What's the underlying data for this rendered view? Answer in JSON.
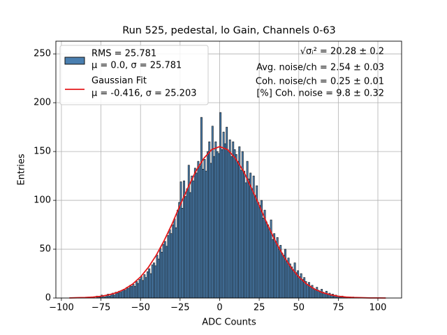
{
  "chart_data": {
    "type": "histogram",
    "title": "Run 525, pedestal, lo Gain, Channels 0-63",
    "x_label": "ADC Counts",
    "y_label": "Entries",
    "bins": [
      -80,
      -79,
      -78,
      -77,
      -76,
      -75,
      -74,
      -73,
      -72,
      -71,
      -70,
      -69,
      -68,
      -67,
      -66,
      -65,
      -64,
      -63,
      -62,
      -61,
      -60,
      -59,
      -58,
      -57,
      -56,
      -55,
      -54,
      -53,
      -52,
      -51,
      -50,
      -49,
      -48,
      -47,
      -46,
      -45,
      -44,
      -43,
      -42,
      -41,
      -40,
      -39,
      -38,
      -37,
      -36,
      -35,
      -34,
      -33,
      -32,
      -31,
      -30,
      -29,
      -28,
      -27,
      -26,
      -25,
      -24,
      -23,
      -22,
      -21,
      -20,
      -19,
      -18,
      -17,
      -16,
      -15,
      -14,
      -13,
      -12,
      -11,
      -10,
      -9,
      -8,
      -7,
      -6,
      -5,
      -4,
      -3,
      -2,
      -1,
      0,
      1,
      2,
      3,
      4,
      5,
      6,
      7,
      8,
      9,
      10,
      11,
      12,
      13,
      14,
      15,
      16,
      17,
      18,
      19,
      20,
      21,
      22,
      23,
      24,
      25,
      26,
      27,
      28,
      29,
      30,
      31,
      32,
      33,
      34,
      35,
      36,
      37,
      38,
      39,
      40,
      41,
      42,
      43,
      44,
      45,
      46,
      47,
      48,
      49,
      50,
      51,
      52,
      53,
      54,
      55,
      56,
      57,
      58,
      59,
      60,
      61,
      62,
      63,
      64,
      65,
      66,
      67,
      68,
      69,
      70,
      71,
      72,
      73,
      74,
      75,
      76,
      77,
      78,
      79,
      80,
      81,
      82,
      83,
      84,
      85
    ],
    "series": [
      {
        "name": "RMS = 25.781",
        "subtitle": "μ = 0.0, σ = 25.781",
        "color": "#4a7fb0",
        "edgecolor": "#111111",
        "values": [
          1,
          0,
          2,
          1,
          1,
          3,
          2,
          1,
          3,
          4,
          2,
          4,
          5,
          3,
          6,
          5,
          7,
          6,
          8,
          9,
          8,
          11,
          10,
          13,
          12,
          14,
          12,
          17,
          15,
          19,
          22,
          18,
          24,
          21,
          27,
          30,
          25,
          34,
          36,
          33,
          44,
          40,
          51,
          47,
          55,
          58,
          53,
          64,
          70,
          66,
          75,
          81,
          72,
          90,
          98,
          119,
          92,
          120,
          104,
          112,
          136,
          108,
          125,
          120,
          133,
          128,
          140,
          135,
          185,
          132,
          142,
          130,
          150,
          160,
          138,
          176,
          145,
          160,
          150,
          148,
          190,
          152,
          170,
          158,
          175,
          150,
          162,
          145,
          160,
          152,
          147,
          140,
          155,
          131,
          150,
          130,
          118,
          140,
          122,
          128,
          112,
          125,
          105,
          115,
          98,
          95,
          100,
          82,
          90,
          78,
          75,
          70,
          80,
          60,
          66,
          58,
          62,
          50,
          54,
          46,
          44,
          50,
          38,
          41,
          35,
          32,
          29,
          36,
          26,
          28,
          22,
          25,
          19,
          21,
          17,
          14,
          16,
          12,
          13,
          10,
          9,
          11,
          8,
          7,
          9,
          6,
          5,
          7,
          4,
          5,
          3,
          4,
          2,
          3,
          2,
          2,
          1,
          2,
          1,
          1,
          1,
          0,
          1,
          0,
          1
        ]
      },
      {
        "name": "Gaussian Fit",
        "subtitle": "μ = -0.416, σ = 25.203",
        "color": "#e41a1c",
        "x": [
          -95,
          -90,
          -85,
          -80,
          -75,
          -70,
          -65,
          -60,
          -55,
          -50,
          -45,
          -40,
          -35,
          -30,
          -25,
          -20,
          -15,
          -10,
          -5,
          0,
          5,
          10,
          15,
          20,
          25,
          30,
          35,
          40,
          45,
          50,
          55,
          60,
          65,
          70,
          75,
          80,
          85,
          90,
          95,
          100,
          105
        ],
        "values": [
          0.1,
          0.3,
          0.5,
          1.0,
          1.8,
          3.3,
          5.5,
          9.1,
          14.3,
          21.6,
          31.5,
          44,
          59,
          76,
          95,
          113,
          130,
          143,
          152,
          155,
          152,
          143,
          130,
          113,
          95,
          76,
          59,
          44,
          31.5,
          21.6,
          14.3,
          9.1,
          5.5,
          3.3,
          1.8,
          1.0,
          0.5,
          0.3,
          0.1,
          0.1,
          0
        ]
      }
    ],
    "annotations": [
      "√σᵢ² = 20.28 ± 0.2",
      "Avg. noise/ch = 2.54 ± 0.03",
      "Coh. noise/ch = 0.25 ± 0.01",
      "[%] Coh. noise = 9.8 ± 0.32"
    ],
    "xlim": [
      -103.5,
      115
    ],
    "ylim": [
      0,
      263
    ],
    "xticks": [
      {
        "value": -100,
        "label": "−100"
      },
      {
        "value": -75,
        "label": "−75"
      },
      {
        "value": -50,
        "label": "−50"
      },
      {
        "value": -25,
        "label": "−25"
      },
      0,
      25,
      50,
      75,
      100
    ],
    "yticks": [
      0,
      50,
      100,
      150,
      200,
      250
    ],
    "grid": true,
    "legend": "upper left"
  }
}
